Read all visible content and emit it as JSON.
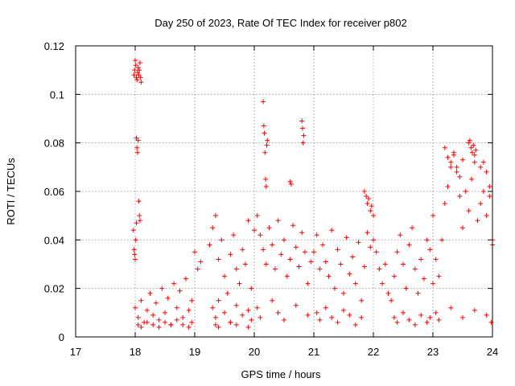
{
  "chart_data": {
    "type": "scatter",
    "title": "Day 250 of 2023, Rate Of TEC Index for receiver p802",
    "xlabel": "GPS time / hours",
    "ylabel": "ROTI / TECUs",
    "xlim": [
      17,
      24
    ],
    "ylim": [
      0,
      0.12
    ],
    "xticks": [
      "17",
      "18",
      "19",
      "20",
      "21",
      "22",
      "23",
      "24"
    ],
    "yticks": [
      "0",
      "0.02",
      "0.04",
      "0.06",
      "0.08",
      "0.1",
      "0.12"
    ],
    "grid": true,
    "marker": "plus",
    "color": "#ff0000",
    "series": [
      {
        "x": [
          17.98,
          17.99,
          18.0,
          18.01,
          18.02,
          18.03,
          18.04,
          18.05,
          18.06,
          18.07,
          18.08,
          18.09,
          18.1,
          18.02,
          18.03,
          18.04,
          18.05,
          18.06,
          18.07,
          18.08,
          17.97,
          17.98,
          17.99,
          18.0,
          18.01,
          18.02,
          18.0,
          18.05,
          18.1,
          18.15,
          18.2,
          18.25,
          18.3,
          18.35,
          18.4,
          18.45,
          18.5,
          18.55,
          18.6,
          18.65,
          18.7,
          18.75,
          18.8,
          18.85,
          18.9,
          18.95,
          18.05,
          18.1,
          18.2,
          18.3,
          18.4,
          18.5,
          18.6,
          18.7,
          18.8,
          18.9,
          18.95,
          19.0,
          19.05,
          19.1,
          19.25,
          19.3,
          19.35,
          19.4,
          19.45,
          19.5,
          19.55,
          19.6,
          19.65,
          19.7,
          19.75,
          19.8,
          19.85,
          19.9,
          19.95,
          20.0,
          19.3,
          19.35,
          19.4,
          19.5,
          19.6,
          19.7,
          19.8,
          19.9,
          19.95,
          19.35,
          19.4,
          19.6,
          19.7,
          19.9,
          20.05,
          20.1,
          20.15,
          20.2,
          20.25,
          20.3,
          20.35,
          20.4,
          20.45,
          20.5,
          20.55,
          20.6,
          20.65,
          20.7,
          20.75,
          20.8,
          20.85,
          20.9,
          20.95,
          20.15,
          20.16,
          20.17,
          20.18,
          20.19,
          20.2,
          20.21,
          20.22,
          20.6,
          20.62,
          20.8,
          20.81,
          20.82,
          20.83,
          20.05,
          20.1,
          20.3,
          20.4,
          20.5,
          20.7,
          20.9,
          21.0,
          21.05,
          21.1,
          21.15,
          21.2,
          21.25,
          21.3,
          21.35,
          21.4,
          21.45,
          21.5,
          21.55,
          21.6,
          21.65,
          21.7,
          21.75,
          21.8,
          21.85,
          21.9,
          21.95,
          21.05,
          21.1,
          21.2,
          21.3,
          21.4,
          21.5,
          21.6,
          21.7,
          21.8,
          21.85,
          21.88,
          21.9,
          21.92,
          21.95,
          21.97,
          22.0,
          22.0,
          22.05,
          22.1,
          22.15,
          22.2,
          22.25,
          22.3,
          22.35,
          22.4,
          22.45,
          22.5,
          22.55,
          22.6,
          22.65,
          22.7,
          22.75,
          22.8,
          22.85,
          22.9,
          22.95,
          23.0,
          22.35,
          22.4,
          22.5,
          22.6,
          22.7,
          22.8,
          22.9,
          22.95,
          23.0,
          23.05,
          23.1,
          23.15,
          23.2,
          23.25,
          23.3,
          23.35,
          23.4,
          23.45,
          23.5,
          23.55,
          23.6,
          23.65,
          23.7,
          23.75,
          23.8,
          23.85,
          23.9,
          23.95,
          24.0,
          23.2,
          23.25,
          23.3,
          23.35,
          23.4,
          23.45,
          23.5,
          23.6,
          23.62,
          23.64,
          23.66,
          23.68,
          23.7,
          23.72,
          23.8,
          23.85,
          23.9,
          23.95,
          24.0,
          23.05,
          23.1,
          23.3,
          23.5,
          23.7,
          23.9,
          23.98
        ],
        "y": [
          0.108,
          0.11,
          0.114,
          0.112,
          0.107,
          0.106,
          0.109,
          0.111,
          0.108,
          0.11,
          0.113,
          0.107,
          0.105,
          0.082,
          0.078,
          0.076,
          0.081,
          0.056,
          0.05,
          0.048,
          0.044,
          0.036,
          0.034,
          0.032,
          0.04,
          0.047,
          0.012,
          0.008,
          0.015,
          0.006,
          0.011,
          0.018,
          0.009,
          0.014,
          0.007,
          0.02,
          0.01,
          0.016,
          0.005,
          0.022,
          0.012,
          0.019,
          0.008,
          0.024,
          0.011,
          0.015,
          0.005,
          0.004,
          0.006,
          0.005,
          0.004,
          0.006,
          0.005,
          0.007,
          0.005,
          0.004,
          0.006,
          0.035,
          0.028,
          0.031,
          0.038,
          0.045,
          0.05,
          0.032,
          0.04,
          0.025,
          0.018,
          0.034,
          0.042,
          0.028,
          0.022,
          0.036,
          0.03,
          0.048,
          0.02,
          0.044,
          0.012,
          0.008,
          0.015,
          0.01,
          0.006,
          0.013,
          0.009,
          0.011,
          0.007,
          0.005,
          0.004,
          0.006,
          0.005,
          0.004,
          0.05,
          0.042,
          0.036,
          0.03,
          0.045,
          0.038,
          0.028,
          0.048,
          0.034,
          0.04,
          0.025,
          0.032,
          0.046,
          0.037,
          0.029,
          0.043,
          0.035,
          0.022,
          0.031,
          0.097,
          0.087,
          0.084,
          0.076,
          0.065,
          0.062,
          0.079,
          0.081,
          0.064,
          0.063,
          0.089,
          0.086,
          0.08,
          0.083,
          0.012,
          0.008,
          0.015,
          0.01,
          0.007,
          0.013,
          0.009,
          0.035,
          0.042,
          0.028,
          0.038,
          0.031,
          0.025,
          0.044,
          0.02,
          0.036,
          0.03,
          0.018,
          0.041,
          0.026,
          0.033,
          0.022,
          0.039,
          0.015,
          0.029,
          0.043,
          0.037,
          0.01,
          0.007,
          0.012,
          0.008,
          0.006,
          0.011,
          0.009,
          0.005,
          0.008,
          0.06,
          0.058,
          0.055,
          0.057,
          0.052,
          0.054,
          0.05,
          0.04,
          0.035,
          0.028,
          0.022,
          0.03,
          0.018,
          0.015,
          0.025,
          0.035,
          0.042,
          0.03,
          0.02,
          0.038,
          0.045,
          0.028,
          0.018,
          0.032,
          0.024,
          0.04,
          0.036,
          0.022,
          0.008,
          0.006,
          0.01,
          0.007,
          0.005,
          0.009,
          0.006,
          0.008,
          0.05,
          0.032,
          0.025,
          0.04,
          0.055,
          0.062,
          0.07,
          0.075,
          0.068,
          0.058,
          0.045,
          0.06,
          0.052,
          0.065,
          0.072,
          0.048,
          0.055,
          0.06,
          0.05,
          0.058,
          0.04,
          0.078,
          0.074,
          0.072,
          0.076,
          0.07,
          0.066,
          0.073,
          0.08,
          0.081,
          0.078,
          0.076,
          0.079,
          0.075,
          0.077,
          0.07,
          0.072,
          0.068,
          0.062,
          0.038,
          0.01,
          0.007,
          0.012,
          0.008,
          0.011,
          0.009,
          0.006
        ]
      }
    ]
  }
}
